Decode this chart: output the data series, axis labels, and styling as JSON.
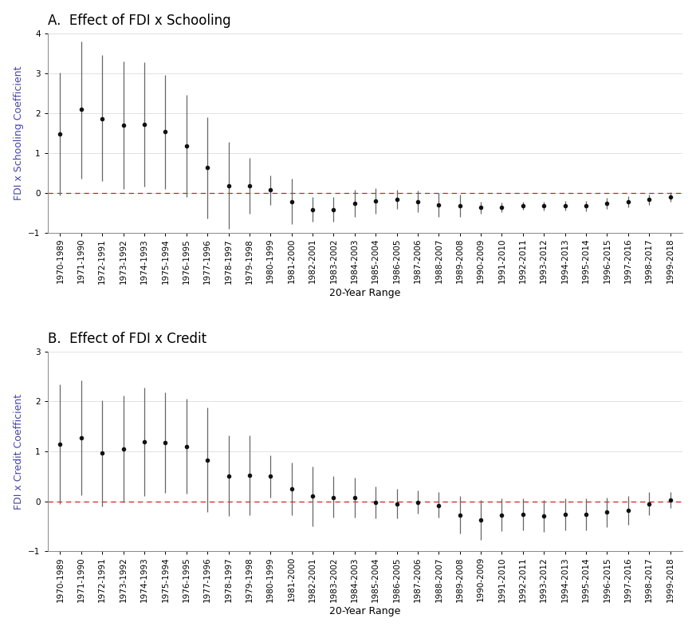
{
  "x_labels": [
    "1970-1989",
    "1971-1990",
    "1972-1991",
    "1973-1992",
    "1974-1993",
    "1975-1994",
    "1976-1995",
    "1977-1996",
    "1978-1997",
    "1979-1998",
    "1980-1999",
    "1981-2000",
    "1982-2001",
    "1983-2002",
    "1984-2003",
    "1985-2004",
    "1986-2005",
    "1987-2006",
    "1988-2007",
    "1989-2008",
    "1990-2009",
    "1991-2010",
    "1992-2011",
    "1993-2012",
    "1994-2013",
    "1995-2014",
    "1996-2015",
    "1997-2016",
    "1998-2017",
    "1999-2018"
  ],
  "panel_A": {
    "title": "A.  Effect of FDI x Schooling",
    "ylabel": "FDI x Schooling Coefficient",
    "coef": [
      1.48,
      2.1,
      1.85,
      1.7,
      1.72,
      1.53,
      1.18,
      0.63,
      0.18,
      0.18,
      0.07,
      -0.22,
      -0.42,
      -0.42,
      -0.27,
      -0.2,
      -0.17,
      -0.22,
      -0.3,
      -0.32,
      -0.37,
      -0.36,
      -0.32,
      -0.33,
      -0.32,
      -0.33,
      -0.27,
      -0.22,
      -0.17,
      -0.1
    ],
    "ci_upper": [
      3.02,
      3.8,
      3.45,
      3.3,
      3.28,
      2.95,
      2.46,
      1.9,
      1.27,
      0.88,
      0.43,
      0.35,
      -0.1,
      -0.1,
      0.07,
      0.12,
      0.08,
      0.05,
      0.0,
      -0.05,
      -0.22,
      -0.24,
      -0.22,
      -0.22,
      -0.2,
      -0.2,
      -0.13,
      -0.08,
      -0.04,
      0.02
    ],
    "ci_lower": [
      -0.06,
      0.35,
      0.3,
      0.1,
      0.15,
      0.1,
      -0.1,
      -0.65,
      -0.9,
      -0.53,
      -0.3,
      -0.78,
      -0.73,
      -0.73,
      -0.6,
      -0.52,
      -0.41,
      -0.48,
      -0.6,
      -0.6,
      -0.53,
      -0.48,
      -0.42,
      -0.44,
      -0.44,
      -0.46,
      -0.41,
      -0.37,
      -0.3,
      -0.22
    ],
    "ylim": [
      -1,
      4
    ],
    "yticks": [
      -1,
      0,
      1,
      2,
      3,
      4
    ]
  },
  "panel_B": {
    "title": "B.  Effect of FDI x Credit",
    "ylabel": "FDI x Credit Coefficient",
    "coef": [
      1.15,
      1.28,
      0.97,
      1.05,
      1.2,
      1.18,
      1.1,
      0.83,
      0.5,
      0.52,
      0.5,
      0.25,
      0.1,
      0.08,
      0.07,
      -0.02,
      -0.05,
      -0.02,
      -0.08,
      -0.28,
      -0.38,
      -0.28,
      -0.27,
      -0.3,
      -0.27,
      -0.27,
      -0.22,
      -0.18,
      -0.05,
      0.03
    ],
    "ci_upper": [
      2.35,
      2.42,
      2.02,
      2.12,
      2.28,
      2.18,
      2.05,
      1.88,
      1.32,
      1.32,
      0.92,
      0.78,
      0.7,
      0.5,
      0.47,
      0.3,
      0.25,
      0.22,
      0.18,
      0.1,
      0.02,
      0.05,
      0.05,
      0.02,
      0.05,
      0.05,
      0.08,
      0.1,
      0.18,
      0.18
    ],
    "ci_lower": [
      -0.05,
      0.12,
      -0.1,
      -0.02,
      0.1,
      0.17,
      0.15,
      -0.22,
      -0.3,
      -0.28,
      0.08,
      -0.28,
      -0.5,
      -0.33,
      -0.33,
      -0.35,
      -0.35,
      -0.25,
      -0.32,
      -0.65,
      -0.78,
      -0.6,
      -0.58,
      -0.62,
      -0.58,
      -0.58,
      -0.52,
      -0.47,
      -0.28,
      -0.13
    ],
    "ylim": [
      -1,
      3
    ],
    "yticks": [
      -1,
      0,
      1,
      2,
      3
    ]
  },
  "xlabel": "20-Year Range",
  "dot_color": "#111111",
  "line_color": "#666666",
  "ref_line_color": "#cc2222",
  "ylabel_color": "#4444aa",
  "background_color": "#ffffff",
  "grid_color": "#dddddd",
  "title_fontsize": 12,
  "label_fontsize": 9,
  "tick_fontsize": 7.5
}
